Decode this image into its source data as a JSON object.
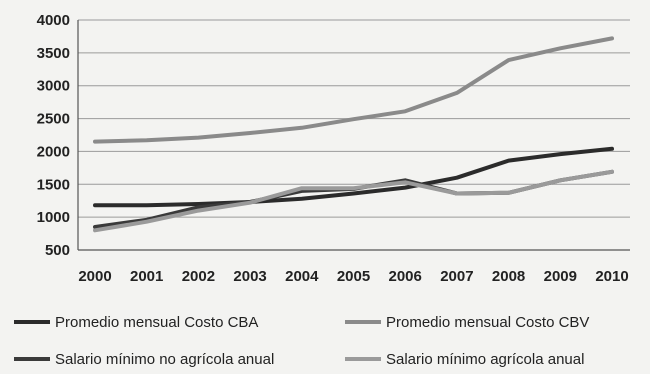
{
  "chart_data": {
    "type": "line",
    "title": "",
    "xlabel": "",
    "ylabel": "",
    "categories": [
      "2000",
      "2001",
      "2002",
      "2003",
      "2004",
      "2005",
      "2006",
      "2007",
      "2008",
      "2009",
      "2010"
    ],
    "ylim": [
      500,
      4000
    ],
    "yticks": [
      500,
      1000,
      1500,
      2000,
      2500,
      3000,
      3500,
      4000
    ],
    "grid": true,
    "legend_position": "bottom",
    "series": [
      {
        "name": "Promedio mensual Costo CBA",
        "color": "#2b2b2b",
        "values": [
          1180,
          1180,
          1200,
          1230,
          1280,
          1360,
          1450,
          1600,
          1860,
          1960,
          2040
        ]
      },
      {
        "name": "Promedio mensual Costo CBV",
        "color": "#8a8a8a",
        "values": [
          2150,
          2170,
          2210,
          2280,
          2360,
          2490,
          2610,
          2890,
          3390,
          3570,
          3720
        ]
      },
      {
        "name": "Salario mínimo no agrícola anual",
        "color": "#3a3a3a",
        "values": [
          850,
          960,
          1150,
          1230,
          1400,
          1430,
          1560,
          1360,
          1370,
          1560,
          1690
        ]
      },
      {
        "name": "Salario mínimo agrícola anual",
        "color": "#9a9a9a",
        "values": [
          800,
          930,
          1100,
          1220,
          1440,
          1440,
          1530,
          1360,
          1370,
          1560,
          1690
        ]
      }
    ]
  }
}
